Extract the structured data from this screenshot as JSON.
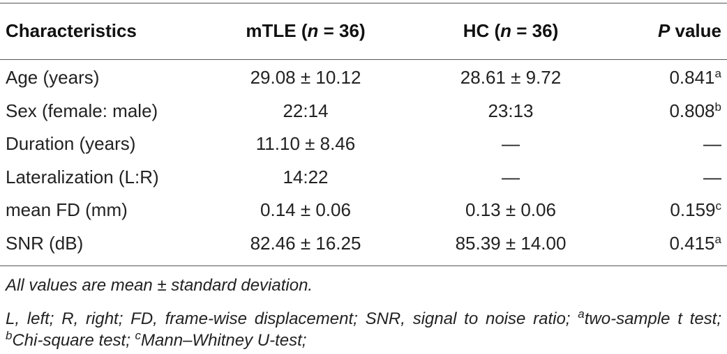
{
  "table": {
    "header": [
      [
        {
          "text": "Characteristics"
        }
      ],
      [
        {
          "text": "mTLE ("
        },
        {
          "text": "n",
          "italic": true
        },
        {
          "text": " = 36)"
        }
      ],
      [
        {
          "text": "HC ("
        },
        {
          "text": "n",
          "italic": true
        },
        {
          "text": " = 36)"
        }
      ],
      [
        {
          "text": "P",
          "italic": true
        },
        {
          "text": " value"
        }
      ]
    ],
    "rows": [
      [
        "Age (years)",
        "29.08 ± 10.12",
        "28.61 ± 9.72",
        {
          "value": "0.841",
          "note": "a"
        }
      ],
      [
        "Sex (female: male)",
        "22:14",
        "23:13",
        {
          "value": "0.808",
          "note": "b"
        }
      ],
      [
        "Duration (years)",
        "11.10 ± 8.46",
        "—",
        {
          "value": "—"
        }
      ],
      [
        "Lateralization (L:R)",
        "14:22",
        "—",
        {
          "value": "—"
        }
      ],
      [
        "mean FD (mm)",
        "0.14 ± 0.06",
        "0.13 ± 0.06",
        {
          "value": "0.159",
          "note": "c"
        }
      ],
      [
        "SNR (dB)",
        "82.46 ± 16.25",
        "85.39 ± 14.00",
        {
          "value": "0.415",
          "note": "a"
        }
      ]
    ],
    "footnotes": [
      [
        {
          "text": "All values are mean ± standard deviation."
        }
      ],
      [
        {
          "text": "L, left; R, right; FD, frame-wise displacement; SNR, signal to noise ratio; "
        },
        {
          "text": "a",
          "sup": true
        },
        {
          "text": "two-sample t test; "
        },
        {
          "text": "b",
          "sup": true
        },
        {
          "text": "Chi-square test; "
        },
        {
          "text": "c",
          "sup": true
        },
        {
          "text": "Mann–Whitney U-test;"
        }
      ]
    ]
  }
}
